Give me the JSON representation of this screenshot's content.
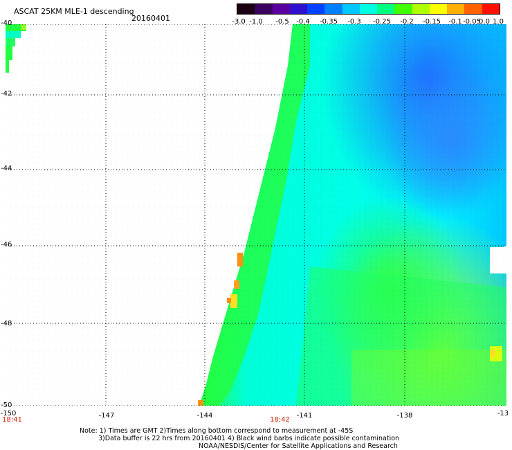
{
  "header": {
    "title": "ASCAT 25KM MLE-1 descending",
    "date": "20160401"
  },
  "colorbar": {
    "labels": [
      "-3.0",
      "-1.0",
      "-0.5",
      "-0.4",
      "-0.35",
      "-0.3",
      "-0.25",
      "-0.2",
      "-0.15",
      "-0.1",
      "-0.05",
      "0.0",
      "1.0"
    ],
    "colors": [
      "#1a0010",
      "#3a0060",
      "#5a00a0",
      "#3010d0",
      "#0040ff",
      "#0080ff",
      "#00c8ff",
      "#00ffe0",
      "#00ff80",
      "#40ff00",
      "#b0ff00",
      "#ffff00",
      "#ffb000",
      "#ff6000",
      "#ff1000"
    ]
  },
  "axes": {
    "y_labels": [
      "-40",
      "-42",
      "-44",
      "-46",
      "-48",
      "-50"
    ],
    "x_labels": [
      "-150",
      "-147",
      "-144",
      "-141",
      "-138",
      "-13"
    ],
    "times": [
      "18:41",
      "18:42"
    ]
  },
  "notes": {
    "line1": "Note: 1) Times are GMT 2)Times along bottom correspond to measurement at -45S",
    "line2": "3)Data buffer is 22 hrs from 20160401 4) Black wind barbs indicate possible contamination",
    "line3": "NOAA/NESDIS/Center for Satellite Applications and Research"
  }
}
